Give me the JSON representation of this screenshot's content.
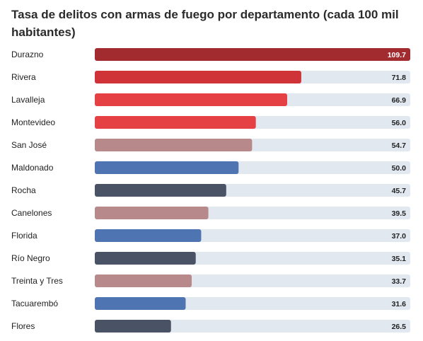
{
  "chart_data": {
    "type": "bar",
    "orientation": "horizontal",
    "title": "Tasa de delitos con armas de fuego por departamento (cada 100 mil habitantes)",
    "xlabel": "",
    "ylabel": "",
    "xlim": [
      0,
      109.7
    ],
    "grid": false,
    "legend": "none",
    "categories": [
      "Durazno",
      "Rivera",
      "Lavalleja",
      "Montevideo",
      "San José",
      "Maldonado",
      "Rocha",
      "Canelones",
      "Florida",
      "Río Negro",
      "Treinta y Tres",
      "Tacuarembó",
      "Flores"
    ],
    "values": [
      109.7,
      71.8,
      66.9,
      56.0,
      54.7,
      50.0,
      45.7,
      39.5,
      37.0,
      35.1,
      33.7,
      31.6,
      26.5
    ],
    "value_labels": [
      "109.7",
      "71.8",
      "66.9",
      "56.0",
      "54.7",
      "50.0",
      "45.7",
      "39.5",
      "37.0",
      "35.1",
      "33.7",
      "31.6",
      "26.5"
    ],
    "bar_colors": [
      "#a12b2f",
      "#d03337",
      "#e54044",
      "#e54044",
      "#b8898b",
      "#4f74b2",
      "#4a5365",
      "#b8898b",
      "#4f74b2",
      "#4a5365",
      "#b8898b",
      "#4f74b2",
      "#4a5365"
    ],
    "track_color": "#e2e8f0"
  }
}
